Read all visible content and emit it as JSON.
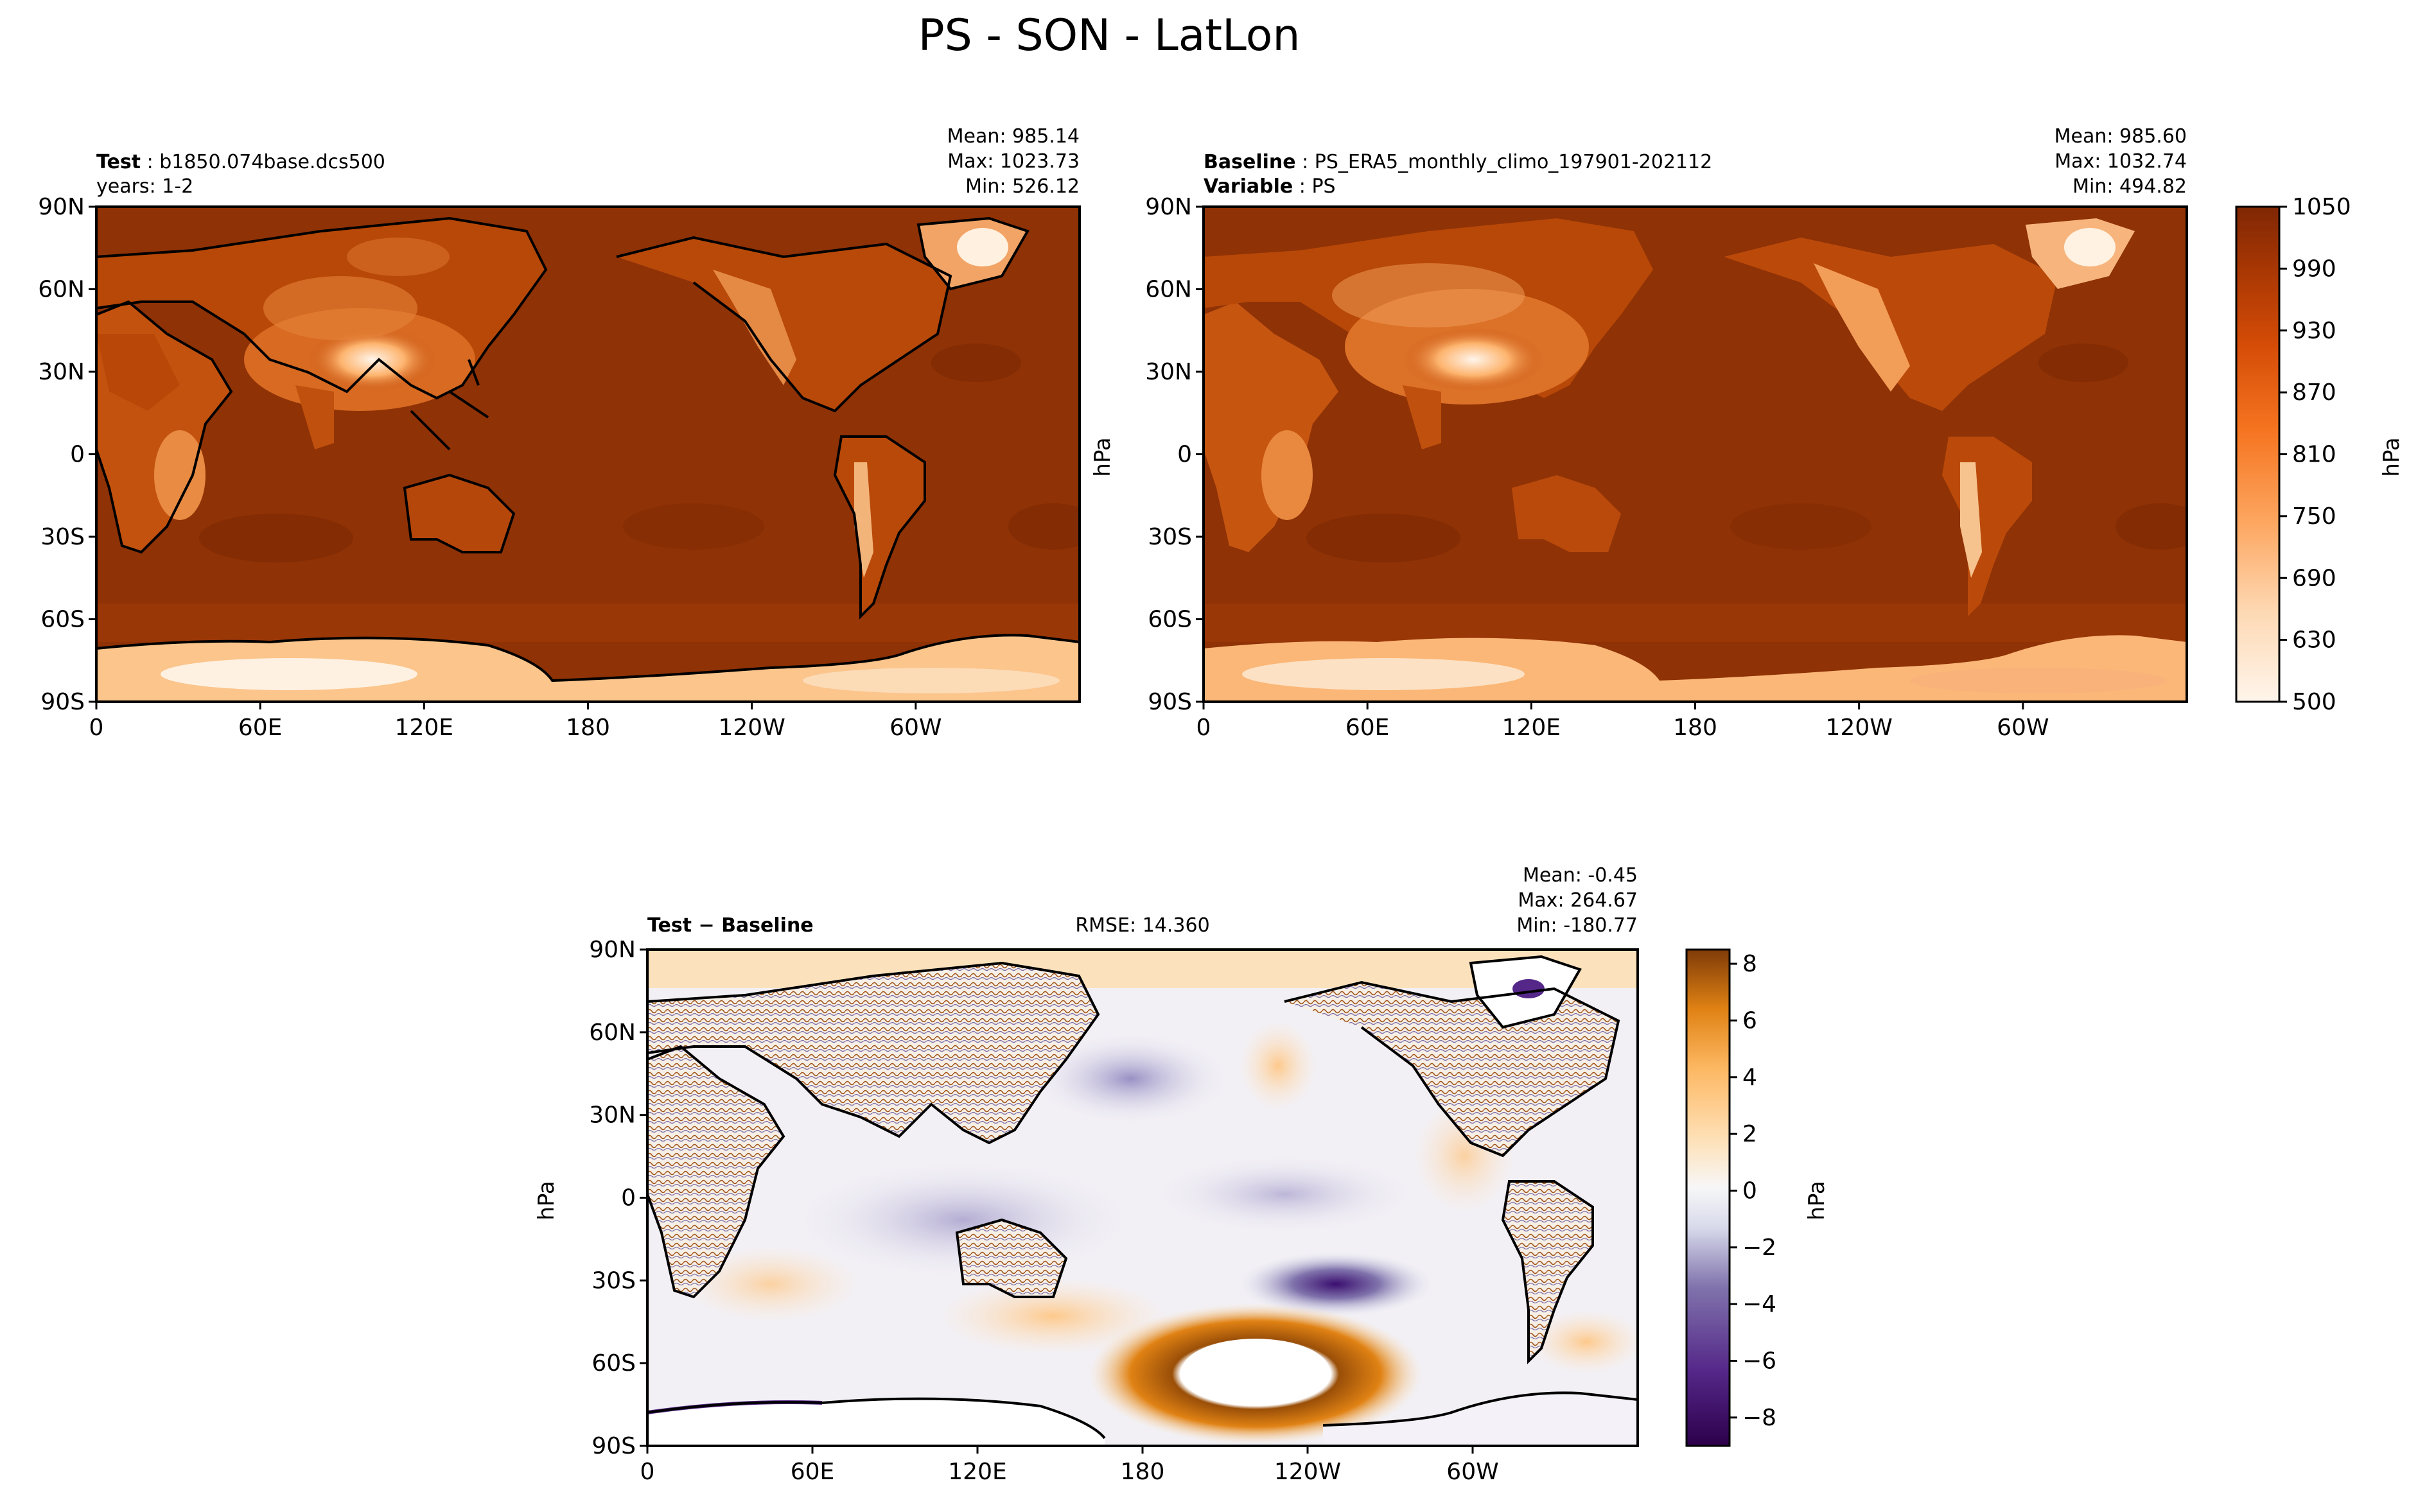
{
  "figure": {
    "title": "PS - SON - LatLon"
  },
  "chart_data": [
    {
      "type": "heatmap",
      "panel": "test",
      "label_key": "Test",
      "label_value": "b1850.074base.dcs500",
      "label_line2": "years: 1-2",
      "stats": {
        "mean": "Mean: 985.14",
        "max": "Max: 1023.73",
        "min": "Min: 526.12"
      },
      "stats_values": {
        "mean": 985.14,
        "max": 1023.73,
        "min": 526.12
      },
      "x_ticks": [
        "0",
        "60E",
        "120E",
        "180",
        "120W",
        "60W"
      ],
      "y_ticks": [
        "90N",
        "60N",
        "30N",
        "0",
        "30S",
        "60S",
        "90S"
      ],
      "xlim": [
        0,
        360
      ],
      "ylim": [
        -90,
        90
      ],
      "projection": "PlateCarree, central longitude 180",
      "colormap": "Oranges"
    },
    {
      "type": "heatmap",
      "panel": "baseline",
      "label_key": "Baseline",
      "label_value": "PS_ERA5_monthly_climo_197901-202112",
      "label_key2": "Variable",
      "label_value2": "PS",
      "stats": {
        "mean": "Mean: 985.60",
        "max": "Max: 1032.74",
        "min": "Min: 494.82"
      },
      "stats_values": {
        "mean": 985.6,
        "max": 1032.74,
        "min": 494.82
      },
      "x_ticks": [
        "0",
        "60E",
        "120E",
        "180",
        "120W",
        "60W"
      ],
      "y_ticks": [
        "90N",
        "60N",
        "30N",
        "0",
        "30S",
        "60S",
        "90S"
      ],
      "ylabel": "hPa",
      "xlim": [
        0,
        360
      ],
      "ylim": [
        -90,
        90
      ],
      "colormap": "Oranges",
      "colorbar": {
        "label": "hPa",
        "ticks": [
          "1050",
          "990",
          "930",
          "870",
          "810",
          "750",
          "690",
          "630",
          "500"
        ],
        "levels": [
          500,
          630,
          650,
          670,
          690,
          710,
          730,
          750,
          770,
          790,
          810,
          830,
          850,
          870,
          890,
          910,
          930,
          950,
          970,
          990,
          1010,
          1030,
          1050
        ]
      }
    },
    {
      "type": "heatmap",
      "panel": "difference",
      "label_key": "Test",
      "label_op": " − ",
      "label_value": "Baseline",
      "rmse": "RMSE: 14.360",
      "rmse_value": 14.36,
      "stats": {
        "mean": "Mean: -0.45",
        "max": "Max: 264.67",
        "min": "Min: -180.77"
      },
      "stats_values": {
        "mean": -0.45,
        "max": 264.67,
        "min": -180.77
      },
      "x_ticks": [
        "0",
        "60E",
        "120E",
        "180",
        "120W",
        "60W"
      ],
      "y_ticks": [
        "90N",
        "60N",
        "30N",
        "0",
        "30S",
        "60S",
        "90S"
      ],
      "ylabel": "hPa",
      "xlim": [
        0,
        360
      ],
      "ylim": [
        -90,
        90
      ],
      "colormap": "PuOr_r",
      "colorbar": {
        "label": "hPa",
        "ticks": [
          "8",
          "6",
          "4",
          "2",
          "0",
          "−2",
          "−4",
          "−6",
          "−8"
        ],
        "range": [
          -9,
          8.5
        ]
      }
    }
  ],
  "colors": {
    "ocean_test": "#8f3206",
    "ocean_ref": "#8f3206",
    "diff_negative_strong": "#3b0f70",
    "diff_positive_strong": "#9a4f08",
    "coastline": "#000000"
  }
}
